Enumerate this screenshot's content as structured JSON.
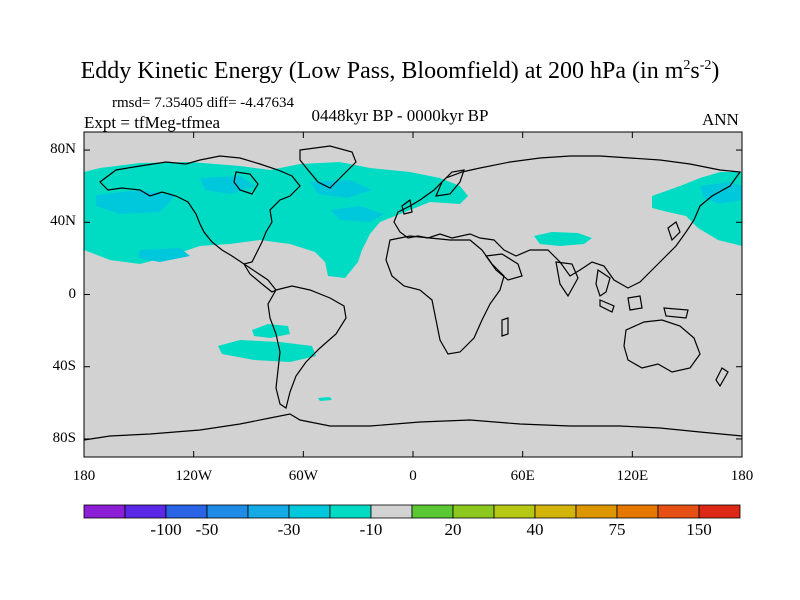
{
  "title": {
    "main": "Eddy Kinetic Energy (Low Pass, Bloomfield) at 200 hPa (in m",
    "sup1": "2",
    "mid": "s",
    "sup2": "-2",
    "end": ")"
  },
  "stats": "rmsd= 7.35405 diff= -4.47634",
  "experiment": "Expt = tfMeg-tfmea",
  "period": "0448kyr BP - 0000kyr BP",
  "season": "ANN",
  "axes": {
    "y_ticks": [
      {
        "label": "80N",
        "value": 80
      },
      {
        "label": "40N",
        "value": 40
      },
      {
        "label": "0",
        "value": 0
      },
      {
        "label": "40S",
        "value": -40
      },
      {
        "label": "80S",
        "value": -80
      }
    ],
    "x_ticks": [
      {
        "label": "180",
        "value": -180
      },
      {
        "label": "120W",
        "value": -120
      },
      {
        "label": "60W",
        "value": -60
      },
      {
        "label": "0",
        "value": 0
      },
      {
        "label": "60E",
        "value": 60
      },
      {
        "label": "120E",
        "value": 120
      },
      {
        "label": "180",
        "value": 180
      }
    ]
  },
  "colorbar": {
    "colors": [
      "#8c1ed6",
      "#5a28e6",
      "#2a64e6",
      "#1e8ce6",
      "#14aae6",
      "#00c8dc",
      "#00dcc3",
      "#d2d2d2",
      "#5ac832",
      "#8cc81e",
      "#b4c814",
      "#d2b40a",
      "#dc9600",
      "#e67800",
      "#e65014",
      "#dc2814"
    ],
    "labels": [
      {
        "text": "-100",
        "index": 2
      },
      {
        "text": "-50",
        "index": 3
      },
      {
        "text": "-30",
        "index": 5
      },
      {
        "text": "-10",
        "index": 7
      },
      {
        "text": "20",
        "index": 9
      },
      {
        "text": "40",
        "index": 11
      },
      {
        "text": "75",
        "index": 13
      },
      {
        "text": "150",
        "index": 15
      }
    ]
  },
  "map_colors": {
    "neutral": "#d2d2d2",
    "light_teal": "#00dcc3",
    "teal": "#00c8dc"
  }
}
